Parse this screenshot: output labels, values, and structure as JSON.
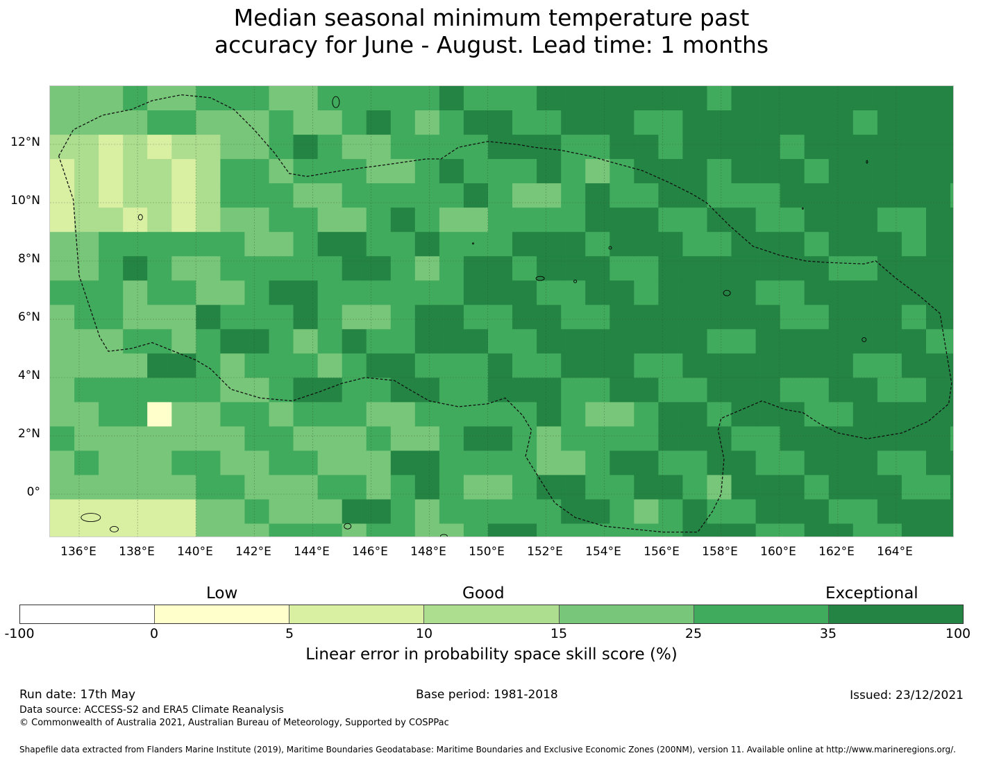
{
  "title": {
    "line1": "Median seasonal minimum temperature past",
    "line2": "accuracy for June - August. Lead time: 1 months"
  },
  "map": {
    "lon_ticks": [
      "136°E",
      "138°E",
      "140°E",
      "142°E",
      "144°E",
      "146°E",
      "148°E",
      "150°E",
      "152°E",
      "154°E",
      "156°E",
      "158°E",
      "160°E",
      "162°E",
      "164°E"
    ],
    "lat_ticks": [
      "12°N",
      "10°N",
      "8°N",
      "6°N",
      "4°N",
      "2°N",
      "0°"
    ],
    "lon_range": [
      135.0,
      166.0
    ],
    "lat_range": [
      -1.5,
      14.0
    ],
    "grid": true,
    "boundary_style": "dashed",
    "colors": {
      "cat_0_5": "#ffffcc",
      "cat_5_10": "#d9f0a3",
      "cat_10_15": "#addd8e",
      "cat_15_25": "#78c679",
      "cat_25_35": "#41ab5d",
      "cat_35_100": "#238443"
    }
  },
  "legend": {
    "category_labels": {
      "low": "Low",
      "good": "Good",
      "exceptional": "Exceptional"
    },
    "boundaries": [
      "-100",
      "0",
      "5",
      "10",
      "15",
      "25",
      "35",
      "100"
    ],
    "segment_colors": [
      "#ffffff",
      "#ffffcc",
      "#d9f0a3",
      "#addd8e",
      "#78c679",
      "#41ab5d",
      "#238443"
    ],
    "label": "Linear error in probability space skill score (%)"
  },
  "footer": {
    "run_date": "Run date: 17th May",
    "base_period": "Base period: 1981-2018",
    "issued": "Issued: 23/12/2021",
    "data_source": "Data source: ACCESS-S2 and ERA5 Climate Reanalysis",
    "copyright": "© Commonwealth of Australia 2021, Australian Bureau of Meteorology, Supported by COSPPac",
    "shapefile": "Shapefile data extracted from Flanders Marine Institute (2019), Maritime Boundaries Geodatabase: Maritime Boundaries and Exclusive Economic Zones (200NM), version 11. Available online at http://www.marineregions.org/."
  }
}
